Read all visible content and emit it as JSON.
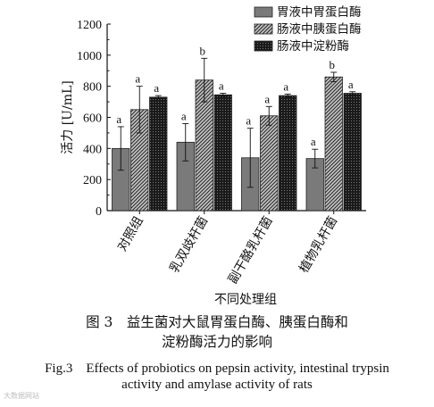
{
  "chart_data": {
    "type": "bar",
    "title": "",
    "xlabel": "不同处理组",
    "ylabel": "活力 [U/mL]",
    "ylim": [
      0,
      1200
    ],
    "yticks": [
      0,
      200,
      400,
      600,
      800,
      1000,
      1200
    ],
    "categories": [
      "对照组",
      "乳双歧杆菌",
      "副干酪乳杆菌",
      "植物乳杆菌"
    ],
    "series": [
      {
        "name": "胃液中胃蛋白酶",
        "values": [
          400,
          440,
          340,
          335
        ],
        "errors": [
          140,
          120,
          190,
          60
        ],
        "labels": [
          "a",
          "a",
          "a",
          "a"
        ]
      },
      {
        "name": "肠液中胰蛋白酶",
        "values": [
          650,
          840,
          610,
          860
        ],
        "errors": [
          150,
          140,
          60,
          30
        ],
        "labels": [
          "a",
          "b",
          "a",
          "b"
        ]
      },
      {
        "name": "肠液中淀粉酶",
        "values": [
          730,
          745,
          740,
          755
        ],
        "errors": [
          10,
          10,
          10,
          10
        ],
        "labels": [
          "a",
          "a",
          "a",
          "a"
        ]
      }
    ],
    "grid": false,
    "legend_position": "top-right"
  },
  "caption": {
    "cn_line1": "图 3　益生菌对大鼠胃蛋白酶、胰蛋白酶和",
    "cn_line2": "淀粉酶活力的影响",
    "en_line1": "Fig.3　Effects of probiotics on pepsin activity, intestinal trypsin",
    "en_line2": "activity and amylase activity of rats"
  },
  "watermark": "大数据网站"
}
